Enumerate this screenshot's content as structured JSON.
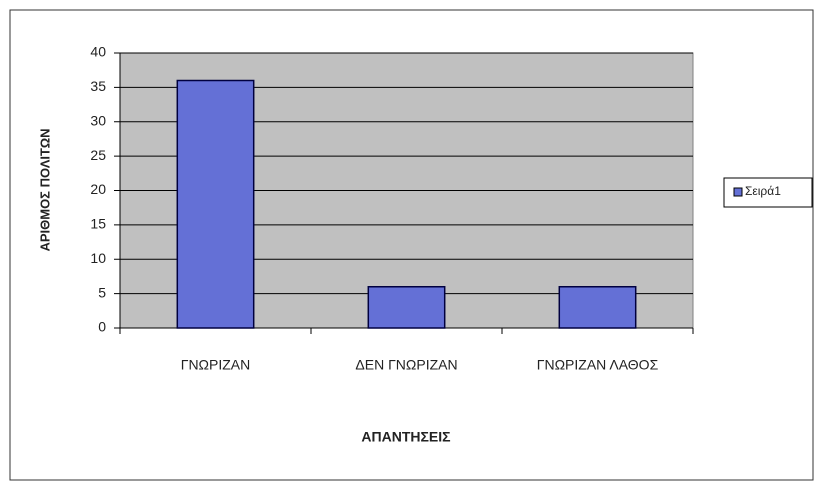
{
  "chart_data": {
    "type": "bar",
    "x_label": "ΑΠΑΝΤΗΣΕΙΣ",
    "y_label": "ΑΡΙΘΜΟΣ ΠΟΛΙΤΩΝ",
    "categories": [
      "ΓΝΩΡΙΖΑΝ",
      "ΔΕΝ ΓΝΩΡΙΖΑΝ",
      "ΓΝΩΡΙΖΑΝ ΛΑΘΟΣ"
    ],
    "series": [
      {
        "name": "Σειρά1",
        "color": "#6470d6",
        "values": [
          36,
          6,
          6
        ]
      }
    ],
    "ylim": [
      0,
      40
    ],
    "yticks": [
      0,
      5,
      10,
      15,
      20,
      25,
      30,
      35,
      40
    ],
    "grid": true,
    "legend": "right"
  }
}
